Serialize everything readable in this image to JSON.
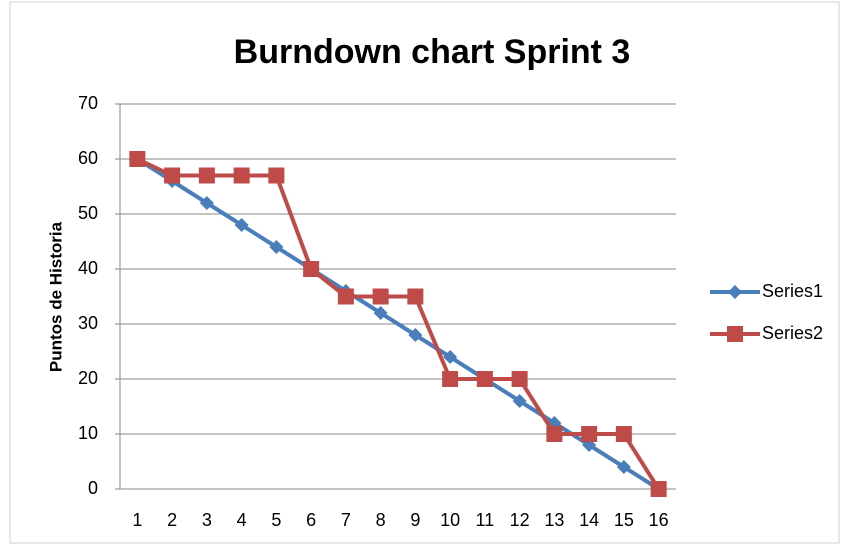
{
  "chart_data": {
    "type": "line",
    "title": "Burndown chart Sprint 3",
    "y_label": "Puntos de Historia",
    "categories": [
      "1",
      "2",
      "3",
      "4",
      "5",
      "6",
      "7",
      "8",
      "9",
      "10",
      "11",
      "12",
      "13",
      "14",
      "15",
      "16"
    ],
    "series": [
      {
        "name": "Series1",
        "color": "#4a7ebb",
        "marker": "diamond",
        "values": [
          60,
          56,
          52,
          48,
          44,
          40,
          36,
          32,
          28,
          24,
          20,
          16,
          12,
          8,
          4,
          0
        ]
      },
      {
        "name": "Series2",
        "color": "#be4b48",
        "marker": "square",
        "values": [
          60,
          57,
          57,
          57,
          57,
          40,
          35,
          35,
          35,
          20,
          20,
          20,
          10,
          10,
          10,
          0
        ]
      }
    ],
    "ylim": [
      0,
      70
    ],
    "yticks": [
      0,
      10,
      20,
      30,
      40,
      50,
      60,
      70
    ],
    "grid": true,
    "legend": "right"
  }
}
